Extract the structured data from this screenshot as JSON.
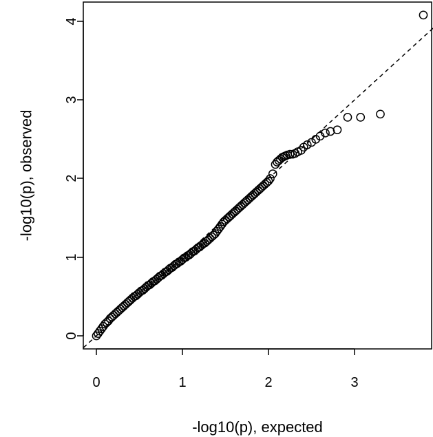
{
  "chart_data": {
    "type": "scatter",
    "title": "",
    "xlabel": "-log10(p), expected",
    "ylabel": "-log10(p), observed",
    "xlim": [
      -0.15,
      3.95
    ],
    "ylim": [
      -0.15,
      4.25
    ],
    "xticks": [
      0,
      1,
      2,
      3
    ],
    "yticks": [
      0,
      1,
      2,
      3,
      4
    ],
    "xtick_labels": [
      "0",
      "1",
      "2",
      "3"
    ],
    "ytick_labels": [
      "0",
      "1",
      "2",
      "3",
      "4"
    ],
    "grid": false,
    "legend": false,
    "reference_line": {
      "style": "dashed",
      "slope": 1,
      "intercept": 0
    },
    "series": [
      {
        "marker": "open-circle",
        "color": "#000000",
        "x": [
          0.0,
          0.02,
          0.04,
          0.06,
          0.08,
          0.1,
          0.12,
          0.14,
          0.16,
          0.18,
          0.2,
          0.22,
          0.24,
          0.26,
          0.28,
          0.3,
          0.32,
          0.34,
          0.36,
          0.38,
          0.4,
          0.42,
          0.44,
          0.46,
          0.48,
          0.5,
          0.52,
          0.54,
          0.56,
          0.58,
          0.6,
          0.62,
          0.64,
          0.66,
          0.68,
          0.7,
          0.72,
          0.74,
          0.76,
          0.78,
          0.8,
          0.82,
          0.84,
          0.86,
          0.88,
          0.9,
          0.92,
          0.94,
          0.96,
          0.98,
          1.0,
          1.02,
          1.04,
          1.06,
          1.08,
          1.1,
          1.12,
          1.14,
          1.16,
          1.18,
          1.2,
          1.22,
          1.24,
          1.26,
          1.28,
          1.3,
          1.32,
          1.34,
          1.36,
          1.38,
          1.4,
          1.42,
          1.44,
          1.46,
          1.48,
          1.5,
          1.52,
          1.54,
          1.56,
          1.58,
          1.6,
          1.62,
          1.64,
          1.66,
          1.68,
          1.7,
          1.72,
          1.74,
          1.76,
          1.78,
          1.8,
          1.82,
          1.84,
          1.86,
          1.88,
          1.9,
          1.92,
          1.94,
          1.96,
          1.98,
          2.0,
          2.02,
          2.05,
          2.08,
          2.1,
          2.12,
          2.14,
          2.16,
          2.18,
          2.2,
          2.22,
          2.25,
          2.28,
          2.31,
          2.34,
          2.38,
          2.41,
          2.45,
          2.5,
          2.55,
          2.6,
          2.66,
          2.72,
          2.8,
          2.92,
          3.07,
          3.3,
          3.8
        ],
        "y": [
          0.0,
          0.03,
          0.06,
          0.09,
          0.12,
          0.15,
          0.17,
          0.19,
          0.22,
          0.24,
          0.26,
          0.28,
          0.3,
          0.32,
          0.34,
          0.36,
          0.38,
          0.4,
          0.42,
          0.44,
          0.46,
          0.48,
          0.5,
          0.51,
          0.53,
          0.55,
          0.57,
          0.58,
          0.6,
          0.62,
          0.64,
          0.65,
          0.67,
          0.69,
          0.7,
          0.72,
          0.74,
          0.76,
          0.77,
          0.79,
          0.81,
          0.82,
          0.84,
          0.86,
          0.87,
          0.89,
          0.91,
          0.92,
          0.94,
          0.95,
          0.97,
          0.99,
          1.0,
          1.02,
          1.03,
          1.05,
          1.07,
          1.08,
          1.1,
          1.12,
          1.13,
          1.15,
          1.17,
          1.18,
          1.2,
          1.22,
          1.24,
          1.26,
          1.28,
          1.3,
          1.33,
          1.36,
          1.39,
          1.42,
          1.45,
          1.47,
          1.49,
          1.51,
          1.53,
          1.55,
          1.57,
          1.59,
          1.61,
          1.63,
          1.65,
          1.67,
          1.69,
          1.71,
          1.73,
          1.75,
          1.77,
          1.79,
          1.81,
          1.83,
          1.85,
          1.87,
          1.89,
          1.91,
          1.93,
          1.95,
          1.97,
          2.0,
          2.06,
          2.18,
          2.21,
          2.23,
          2.25,
          2.27,
          2.28,
          2.29,
          2.3,
          2.31,
          2.31,
          2.32,
          2.34,
          2.36,
          2.4,
          2.43,
          2.46,
          2.5,
          2.54,
          2.58,
          2.6,
          2.62,
          2.78,
          2.78,
          2.82,
          4.08
        ]
      }
    ]
  }
}
